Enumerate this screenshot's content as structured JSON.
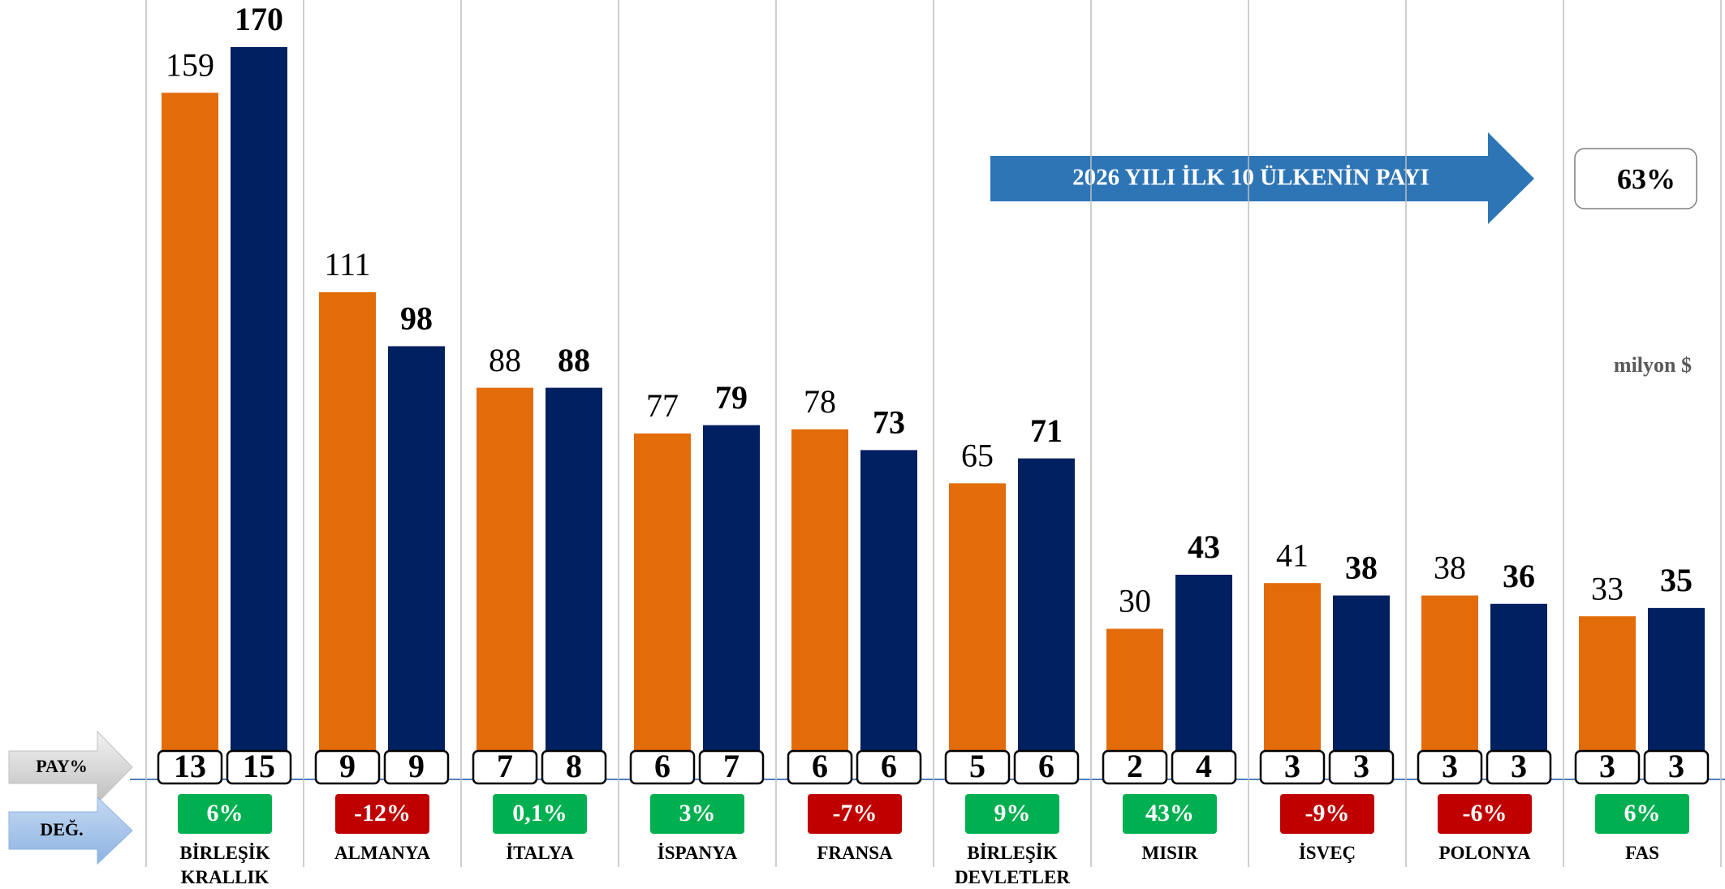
{
  "chart_data": {
    "type": "bar",
    "categories": [
      "BİRLEŞİK KRALLIK",
      "ALMANYA",
      "İTALYA",
      "İSPANYA",
      "FRANSA",
      "BİRLEŞİK DEVLETLER",
      "MISIR",
      "İSVEÇ",
      "POLONYA",
      "FAS"
    ],
    "series": [
      {
        "color": "#e36c0a",
        "values": [
          159,
          111,
          88,
          77,
          78,
          65,
          30,
          41,
          38,
          33
        ],
        "shares": [
          13,
          9,
          7,
          6,
          6,
          5,
          2,
          3,
          3,
          3
        ]
      },
      {
        "color": "#002060",
        "values": [
          170,
          98,
          88,
          79,
          73,
          71,
          43,
          38,
          36,
          35
        ],
        "shares": [
          15,
          9,
          8,
          7,
          6,
          6,
          4,
          3,
          3,
          3
        ]
      }
    ],
    "changes": [
      {
        "value": 6,
        "label": "6%"
      },
      {
        "value": -12,
        "label": "-12%"
      },
      {
        "value": 0.1,
        "label": "0,1%"
      },
      {
        "value": 3,
        "label": "3%"
      },
      {
        "value": -7,
        "label": "-7%"
      },
      {
        "value": 9,
        "label": "9%"
      },
      {
        "value": 43,
        "label": "43%"
      },
      {
        "value": -9,
        "label": "-9%"
      },
      {
        "value": -6,
        "label": "-6%"
      },
      {
        "value": 6,
        "label": "6%"
      }
    ],
    "positive_color": "#00b050",
    "negative_color": "#c00000",
    "share_label": "PAY%",
    "change_label": "DEĞ.",
    "annotation": "2026 YILI İLK 10 ÜLKENİN PAYI",
    "annotation_value": "63%",
    "unit": "milyon $"
  }
}
